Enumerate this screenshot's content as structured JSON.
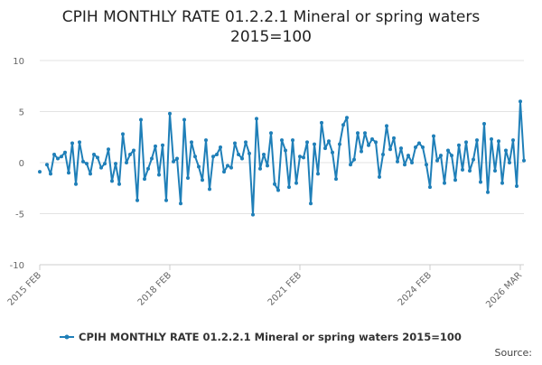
{
  "chart_data": {
    "type": "line",
    "title": "CPIH MONTHLY RATE 01.2.2.1 Mineral or spring waters",
    "subtitle": "2015=100",
    "xlabel": "",
    "ylabel": "",
    "x_tick_labels": [
      "2015 FEB",
      "2018 FEB",
      "2021 FEB",
      "2024 FEB",
      "2026 MAR"
    ],
    "x_tick_indices": [
      0,
      36,
      72,
      108,
      133
    ],
    "ylim": [
      -10,
      10
    ],
    "y_ticks": [
      10,
      5,
      0,
      -5,
      -10
    ],
    "grid": true,
    "legend_position": "bottom",
    "series": [
      {
        "name": "CPIH MONTHLY RATE 01.2.2.1 Mineral or spring waters 2015=100",
        "color": "#1f7fb8",
        "values": [
          -0.9,
          null,
          -0.2,
          -1.1,
          0.8,
          0.4,
          0.6,
          1.0,
          -1.0,
          1.9,
          -2.1,
          2.0,
          0.1,
          -0.1,
          -1.1,
          0.8,
          0.5,
          -0.5,
          -0.1,
          1.3,
          -1.8,
          -0.1,
          -2.1,
          2.8,
          0.0,
          0.8,
          1.2,
          -3.7,
          4.2,
          -1.6,
          -0.6,
          0.4,
          1.6,
          -1.2,
          1.7,
          -3.7,
          4.8,
          0.1,
          0.4,
          -4.0,
          4.2,
          -1.5,
          2.0,
          0.6,
          -0.4,
          -1.7,
          2.2,
          -2.6,
          0.6,
          0.8,
          1.5,
          -0.9,
          -0.3,
          -0.5,
          1.9,
          0.8,
          0.4,
          2.0,
          0.9,
          -5.1,
          4.3,
          -0.6,
          0.8,
          -0.3,
          2.9,
          -2.1,
          -2.7,
          2.2,
          1.2,
          -2.4,
          2.2,
          -2.0,
          0.6,
          0.5,
          2.0,
          -4.0,
          1.8,
          -1.1,
          3.9,
          1.4,
          2.1,
          1.0,
          -1.6,
          1.8,
          3.7,
          4.4,
          -0.2,
          0.3,
          2.9,
          1.1,
          2.9,
          1.7,
          2.3,
          2.0,
          -1.4,
          0.8,
          3.6,
          1.3,
          2.4,
          0.1,
          1.4,
          -0.2,
          0.7,
          0.0,
          1.5,
          1.9,
          1.5,
          -0.2,
          -2.4,
          2.6,
          0.2,
          0.7,
          -2.0,
          1.2,
          0.7,
          -1.7,
          1.7,
          -0.7,
          2.0,
          -0.8,
          0.3,
          2.2,
          -1.9,
          3.8,
          -2.9,
          2.3,
          -0.8,
          2.1,
          -2.0,
          1.2,
          0.0,
          2.2,
          -2.3,
          6.0,
          0.2
        ]
      }
    ],
    "source_label": "Source:"
  }
}
